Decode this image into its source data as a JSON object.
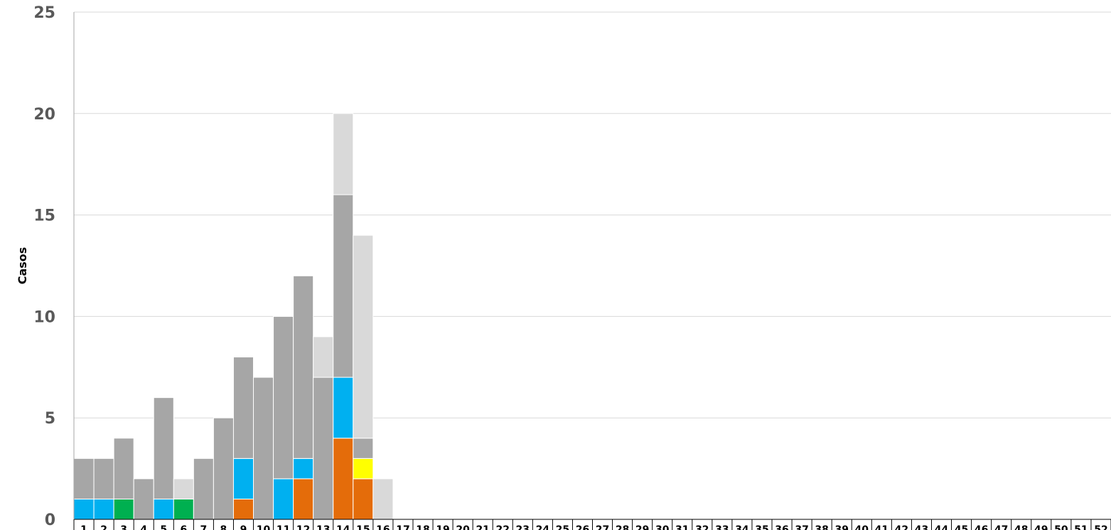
{
  "chart_data": {
    "type": "bar",
    "stacked": true,
    "title": "",
    "xlabel": "",
    "ylabel": "Casos",
    "ylim": [
      0,
      25
    ],
    "yticks": [
      0,
      5,
      10,
      15,
      20,
      25
    ],
    "grid": true,
    "legend": "none",
    "categories": [
      "1",
      "2",
      "3",
      "4",
      "5",
      "6",
      "7",
      "8",
      "9",
      "10",
      "11",
      "12",
      "13",
      "14",
      "15",
      "16",
      "17",
      "18",
      "19",
      "20",
      "21",
      "22",
      "23",
      "24",
      "25",
      "26",
      "27",
      "28",
      "29",
      "30",
      "31",
      "32",
      "33",
      "34",
      "35",
      "36",
      "37",
      "38",
      "39",
      "40",
      "41",
      "42",
      "43",
      "44",
      "45",
      "46",
      "47",
      "48",
      "49",
      "50",
      "51",
      "52"
    ],
    "series": [
      {
        "color": "#E46C0A",
        "values": [
          0,
          0,
          0,
          0,
          0,
          0,
          0,
          0,
          1,
          0,
          0,
          2,
          0,
          4,
          2,
          0,
          0,
          0,
          0,
          0,
          0,
          0,
          0,
          0,
          0,
          0,
          0,
          0,
          0,
          0,
          0,
          0,
          0,
          0,
          0,
          0,
          0,
          0,
          0,
          0,
          0,
          0,
          0,
          0,
          0,
          0,
          0,
          0,
          0,
          0,
          0,
          0
        ]
      },
      {
        "color": "#FFFF00",
        "values": [
          0,
          0,
          0,
          0,
          0,
          0,
          0,
          0,
          0,
          0,
          0,
          0,
          0,
          0,
          1,
          0,
          0,
          0,
          0,
          0,
          0,
          0,
          0,
          0,
          0,
          0,
          0,
          0,
          0,
          0,
          0,
          0,
          0,
          0,
          0,
          0,
          0,
          0,
          0,
          0,
          0,
          0,
          0,
          0,
          0,
          0,
          0,
          0,
          0,
          0,
          0,
          0
        ]
      },
      {
        "color": "#00B050",
        "values": [
          0,
          0,
          1,
          0,
          0,
          1,
          0,
          0,
          0,
          0,
          0,
          0,
          0,
          0,
          0,
          0,
          0,
          0,
          0,
          0,
          0,
          0,
          0,
          0,
          0,
          0,
          0,
          0,
          0,
          0,
          0,
          0,
          0,
          0,
          0,
          0,
          0,
          0,
          0,
          0,
          0,
          0,
          0,
          0,
          0,
          0,
          0,
          0,
          0,
          0,
          0,
          0
        ]
      },
      {
        "color": "#00B0F0",
        "values": [
          1,
          1,
          0,
          0,
          1,
          0,
          0,
          0,
          2,
          0,
          2,
          1,
          0,
          3,
          0,
          0,
          0,
          0,
          0,
          0,
          0,
          0,
          0,
          0,
          0,
          0,
          0,
          0,
          0,
          0,
          0,
          0,
          0,
          0,
          0,
          0,
          0,
          0,
          0,
          0,
          0,
          0,
          0,
          0,
          0,
          0,
          0,
          0,
          0,
          0,
          0,
          0
        ]
      },
      {
        "color": "#A6A6A6",
        "values": [
          2,
          2,
          3,
          2,
          5,
          0,
          3,
          5,
          5,
          7,
          8,
          9,
          7,
          9,
          1,
          0,
          0,
          0,
          0,
          0,
          0,
          0,
          0,
          0,
          0,
          0,
          0,
          0,
          0,
          0,
          0,
          0,
          0,
          0,
          0,
          0,
          0,
          0,
          0,
          0,
          0,
          0,
          0,
          0,
          0,
          0,
          0,
          0,
          0,
          0,
          0,
          0
        ]
      },
      {
        "color": "#D9D9D9",
        "values": [
          0,
          0,
          0,
          0,
          0,
          1,
          0,
          0,
          0,
          0,
          0,
          0,
          2,
          4,
          10,
          2,
          0,
          0,
          0,
          0,
          0,
          0,
          0,
          0,
          0,
          0,
          0,
          0,
          0,
          0,
          0,
          0,
          0,
          0,
          0,
          0,
          0,
          0,
          0,
          0,
          0,
          0,
          0,
          0,
          0,
          0,
          0,
          0,
          0,
          0,
          0,
          0
        ]
      }
    ]
  }
}
